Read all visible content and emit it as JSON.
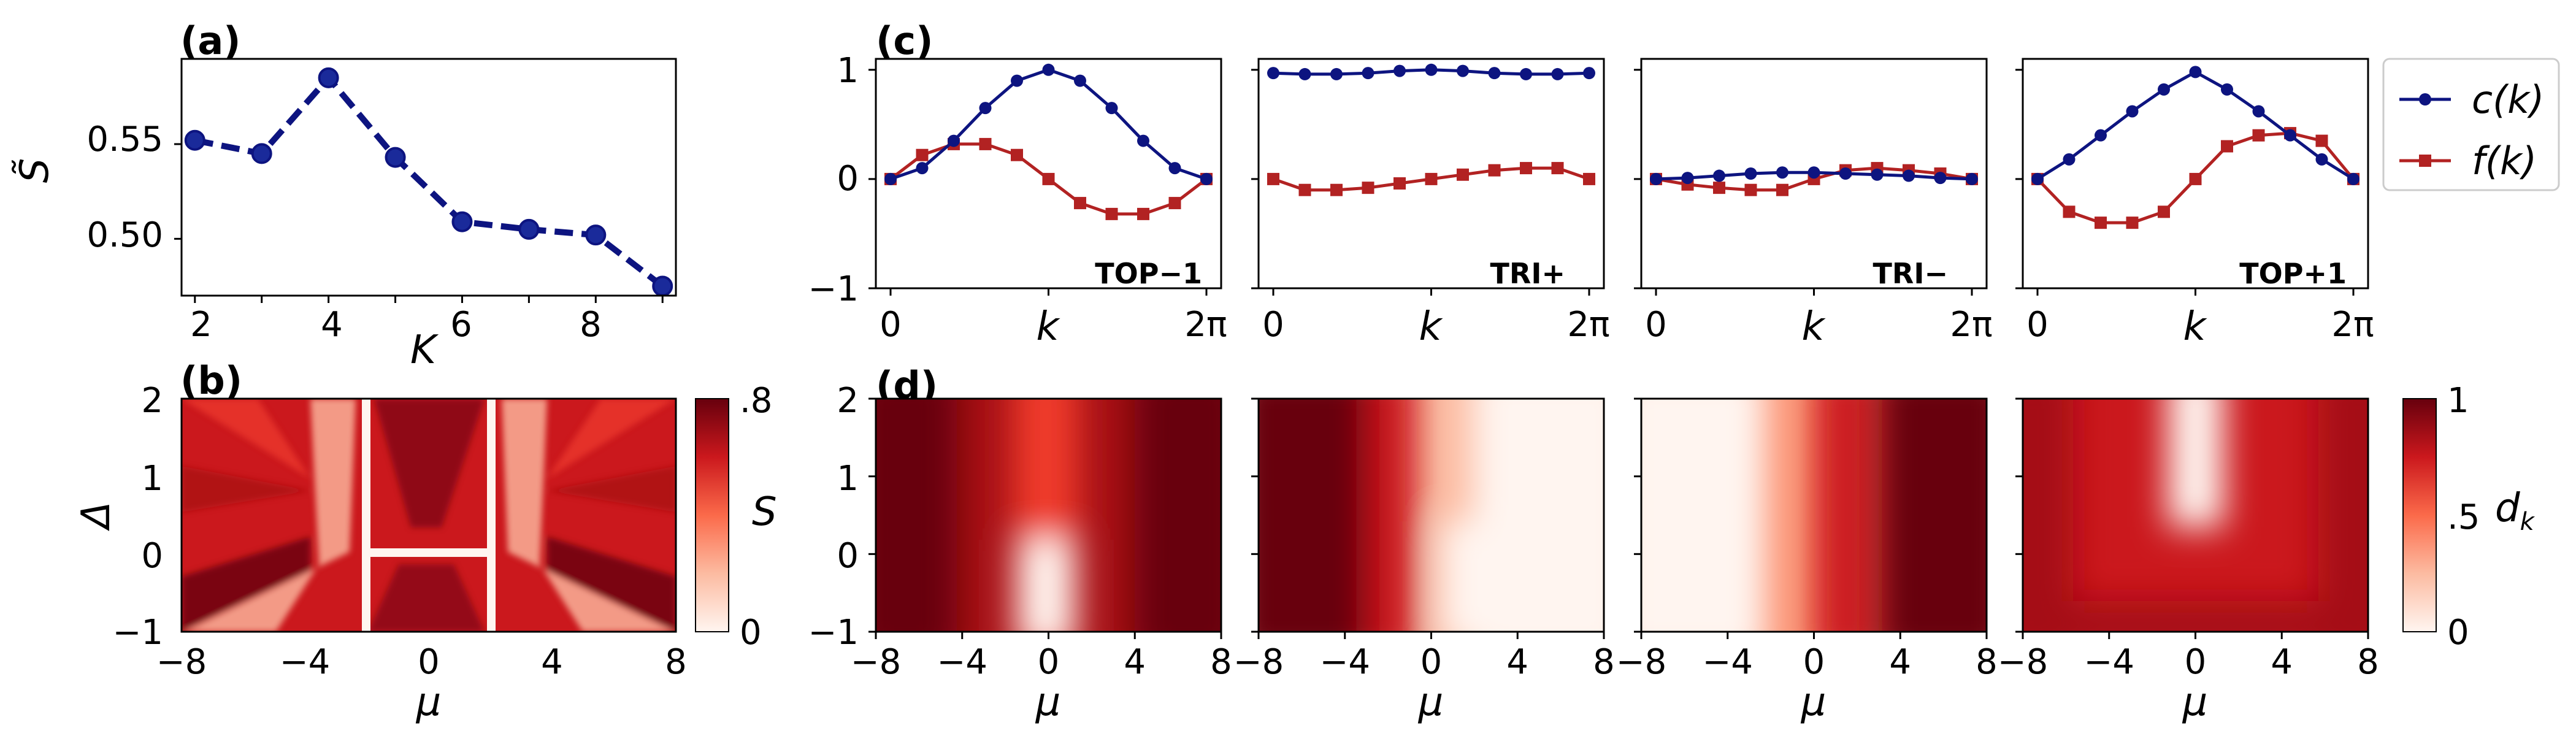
{
  "colors": {
    "navy": "#0d1480",
    "red": "#b22222",
    "cmap": "Reds"
  },
  "panel_labels": [
    "(a)",
    "(b)",
    "(c)",
    "(d)"
  ],
  "chart_data": [
    {
      "id": "a",
      "type": "line",
      "xlabel": "K",
      "ylabel": "S̃",
      "x": [
        2,
        3,
        4,
        5,
        6,
        7,
        8,
        9
      ],
      "y": [
        0.552,
        0.545,
        0.585,
        0.543,
        0.509,
        0.505,
        0.502,
        0.475
      ],
      "xticks": [
        "2",
        "4",
        "6",
        "8"
      ],
      "yticks": [
        "0.50",
        "0.55"
      ],
      "xlim": [
        1.8,
        9.2
      ],
      "ylim": [
        0.47,
        0.595
      ],
      "style": "dashed line with circle markers"
    },
    {
      "id": "b",
      "type": "heatmap",
      "xlabel": "μ",
      "ylabel": "Δ",
      "xlim": [
        -8,
        8
      ],
      "ylim": [
        -1,
        2
      ],
      "xticks": [
        "−8",
        "−4",
        "0",
        "4",
        "8"
      ],
      "yticks": [
        "−1",
        "0",
        "1",
        "2"
      ],
      "colorbar": {
        "label": "S",
        "ticks": [
          "0",
          ".8"
        ],
        "range": [
          0,
          0.8
        ]
      }
    },
    {
      "id": "c",
      "type": "line",
      "xlabel": "k",
      "xticks": [
        "0",
        "2π"
      ],
      "yticks": [
        "−1",
        "0",
        "1"
      ],
      "ylim": [
        -1,
        1.1
      ],
      "legend": [
        "c(k)",
        "f(k)"
      ],
      "legend_position": "right",
      "subplots": [
        {
          "tag": "TOP−1",
          "c": [
            0,
            0.1,
            0.35,
            0.65,
            0.9,
            1.0,
            0.9,
            0.65,
            0.35,
            0.1,
            0
          ],
          "f": [
            0,
            0.22,
            0.32,
            0.32,
            0.22,
            0,
            -0.22,
            -0.32,
            -0.32,
            -0.22,
            0
          ]
        },
        {
          "tag": "TRI+",
          "c": [
            0.97,
            0.96,
            0.96,
            0.97,
            0.99,
            1.0,
            0.99,
            0.97,
            0.96,
            0.96,
            0.97
          ],
          "f": [
            0,
            -0.1,
            -0.1,
            -0.08,
            -0.04,
            0,
            0.04,
            0.08,
            0.1,
            0.1,
            0
          ]
        },
        {
          "tag": "TRI−",
          "c": [
            0,
            0.01,
            0.03,
            0.05,
            0.06,
            0.06,
            0.05,
            0.04,
            0.03,
            0.01,
            0
          ],
          "f": [
            0,
            -0.05,
            -0.08,
            -0.1,
            -0.1,
            0,
            0.08,
            0.1,
            0.08,
            0.05,
            0
          ]
        },
        {
          "tag": "TOP+1",
          "c": [
            0,
            0.18,
            0.4,
            0.62,
            0.82,
            0.98,
            0.82,
            0.62,
            0.4,
            0.18,
            0
          ],
          "f": [
            0,
            -0.3,
            -0.4,
            -0.4,
            -0.3,
            0,
            0.3,
            0.4,
            0.42,
            0.35,
            0
          ]
        }
      ]
    },
    {
      "id": "d",
      "type": "heatmap",
      "xlabel": "μ",
      "xlim": [
        -8,
        8
      ],
      "ylim": [
        -1,
        2
      ],
      "xticks": [
        "−8",
        "−4",
        "0",
        "4",
        "8"
      ],
      "yticks": [
        "−1",
        "0",
        "1",
        "2"
      ],
      "colorbar": {
        "label": "d_k",
        "ticks": [
          "0",
          ".5",
          "1"
        ],
        "range": [
          0,
          1
        ]
      },
      "subplots": [
        "TOP−1",
        "TRI+",
        "TRI−",
        "TOP+1"
      ]
    }
  ]
}
